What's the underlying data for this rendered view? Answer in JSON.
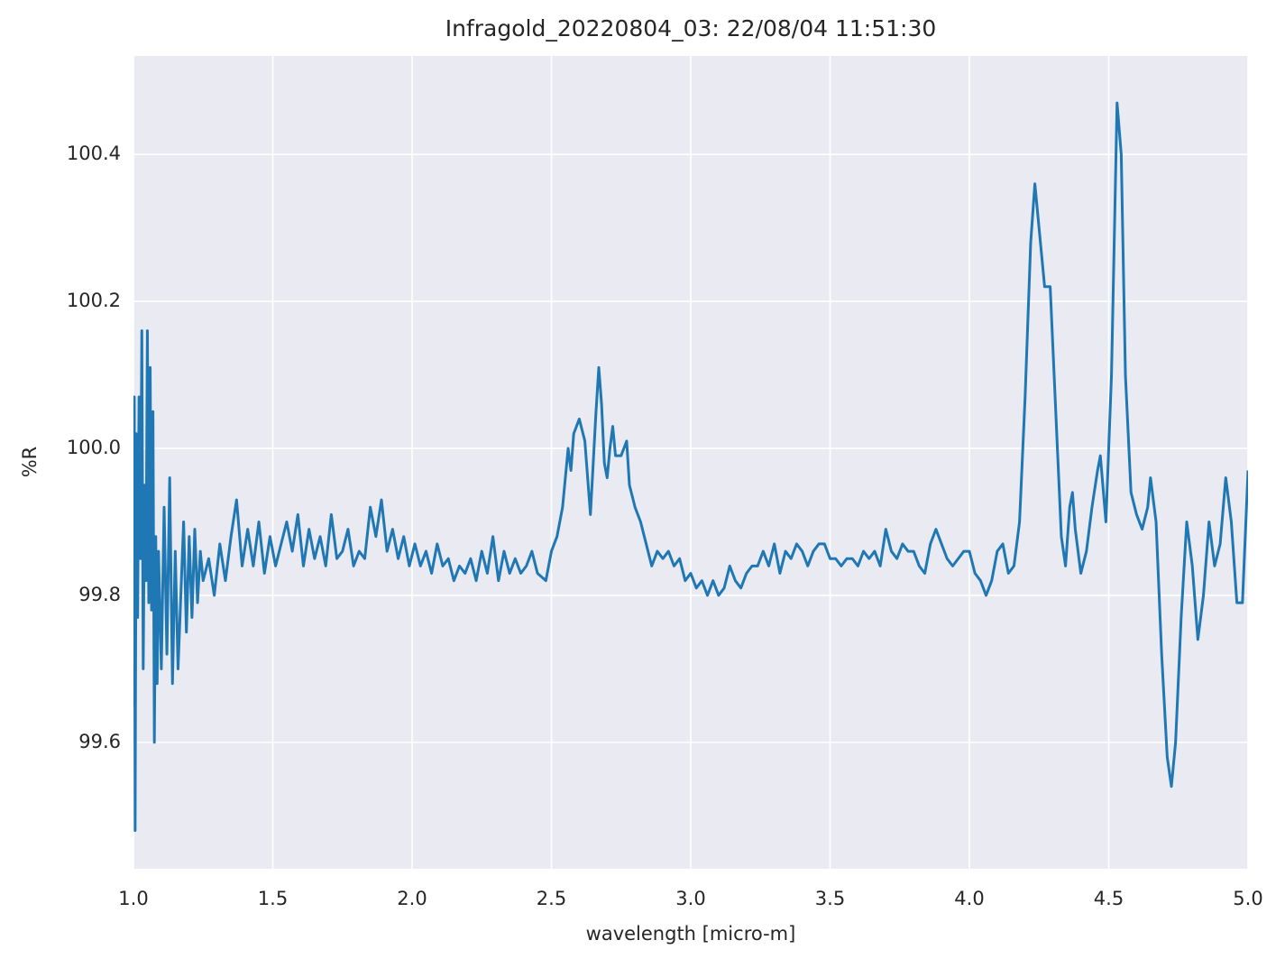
{
  "chart_data": {
    "type": "line",
    "title": "Infragold_20220804_03:  22/08/04 11:51:30",
    "x_label": "wavelength [micro-m]",
    "y_label": "%R",
    "color": "#1f77b4",
    "grid": true,
    "xlim": [
      1.0,
      5.0
    ],
    "ylim": [
      99.428,
      100.534
    ],
    "xticks": [
      {
        "value": 1.0,
        "label": "1.0"
      },
      1.5,
      {
        "value": 2.0,
        "label": "2.0"
      },
      2.5,
      {
        "value": 3.0,
        "label": "3.0"
      },
      3.5,
      {
        "value": 4.0,
        "label": "4.0"
      },
      4.5,
      {
        "value": 5.0,
        "label": "5.0"
      }
    ],
    "yticks": [
      99.6,
      99.8,
      {
        "value": 100.0,
        "label": "100.0"
      },
      100.2,
      100.4
    ],
    "x": [
      1.0,
      1.003,
      1.006,
      1.01,
      1.015,
      1.02,
      1.025,
      1.03,
      1.035,
      1.04,
      1.045,
      1.05,
      1.055,
      1.06,
      1.065,
      1.07,
      1.075,
      1.08,
      1.085,
      1.09,
      1.1,
      1.11,
      1.12,
      1.13,
      1.14,
      1.15,
      1.16,
      1.17,
      1.18,
      1.19,
      1.2,
      1.21,
      1.22,
      1.23,
      1.24,
      1.25,
      1.27,
      1.29,
      1.31,
      1.33,
      1.35,
      1.37,
      1.39,
      1.41,
      1.43,
      1.45,
      1.47,
      1.49,
      1.51,
      1.53,
      1.55,
      1.57,
      1.59,
      1.61,
      1.63,
      1.65,
      1.67,
      1.69,
      1.71,
      1.73,
      1.75,
      1.77,
      1.79,
      1.81,
      1.83,
      1.85,
      1.87,
      1.89,
      1.91,
      1.93,
      1.95,
      1.97,
      1.99,
      2.01,
      2.03,
      2.05,
      2.07,
      2.09,
      2.11,
      2.13,
      2.15,
      2.17,
      2.19,
      2.21,
      2.23,
      2.25,
      2.27,
      2.29,
      2.31,
      2.33,
      2.35,
      2.37,
      2.39,
      2.41,
      2.43,
      2.45,
      2.48,
      2.5,
      2.52,
      2.54,
      2.56,
      2.57,
      2.58,
      2.6,
      2.62,
      2.63,
      2.64,
      2.65,
      2.66,
      2.67,
      2.68,
      2.69,
      2.7,
      2.71,
      2.72,
      2.73,
      2.75,
      2.76,
      2.77,
      2.78,
      2.8,
      2.82,
      2.84,
      2.86,
      2.88,
      2.9,
      2.92,
      2.94,
      2.96,
      2.98,
      3.0,
      3.02,
      3.04,
      3.06,
      3.08,
      3.1,
      3.12,
      3.14,
      3.16,
      3.18,
      3.2,
      3.22,
      3.24,
      3.26,
      3.28,
      3.3,
      3.32,
      3.34,
      3.36,
      3.38,
      3.4,
      3.42,
      3.44,
      3.46,
      3.48,
      3.5,
      3.52,
      3.54,
      3.56,
      3.58,
      3.6,
      3.62,
      3.64,
      3.66,
      3.68,
      3.7,
      3.72,
      3.74,
      3.76,
      3.78,
      3.8,
      3.82,
      3.84,
      3.86,
      3.88,
      3.9,
      3.92,
      3.94,
      3.96,
      3.98,
      4.0,
      4.02,
      4.04,
      4.06,
      4.08,
      4.1,
      4.12,
      4.14,
      4.16,
      4.18,
      4.2,
      4.22,
      4.235,
      4.25,
      4.27,
      4.29,
      4.31,
      4.33,
      4.345,
      4.36,
      4.37,
      4.38,
      4.4,
      4.42,
      4.44,
      4.46,
      4.47,
      4.49,
      4.51,
      4.53,
      4.545,
      4.56,
      4.58,
      4.6,
      4.62,
      4.64,
      4.65,
      4.67,
      4.69,
      4.71,
      4.725,
      4.74,
      4.76,
      4.78,
      4.8,
      4.82,
      4.84,
      4.86,
      4.88,
      4.9,
      4.92,
      4.94,
      4.96,
      4.98,
      5.0
    ],
    "values": [
      99.65,
      100.07,
      99.48,
      100.02,
      99.77,
      100.07,
      99.85,
      100.16,
      99.7,
      99.95,
      99.82,
      100.16,
      99.79,
      100.11,
      99.78,
      100.05,
      99.6,
      99.88,
      99.68,
      99.86,
      99.7,
      99.92,
      99.72,
      99.96,
      99.68,
      99.86,
      99.7,
      99.8,
      99.9,
      99.75,
      99.88,
      99.77,
      99.89,
      99.79,
      99.86,
      99.82,
      99.85,
      99.8,
      99.87,
      99.82,
      99.88,
      99.93,
      99.84,
      99.89,
      99.84,
      99.9,
      99.83,
      99.88,
      99.84,
      99.87,
      99.9,
      99.86,
      99.91,
      99.84,
      99.89,
      99.85,
      99.88,
      99.84,
      99.91,
      99.85,
      99.86,
      99.89,
      99.84,
      99.86,
      99.85,
      99.92,
      99.88,
      99.93,
      99.86,
      99.89,
      99.85,
      99.88,
      99.84,
      99.87,
      99.84,
      99.86,
      99.83,
      99.87,
      99.84,
      99.85,
      99.82,
      99.84,
      99.83,
      99.85,
      99.82,
      99.86,
      99.83,
      99.88,
      99.82,
      99.86,
      99.83,
      99.85,
      99.83,
      99.84,
      99.86,
      99.83,
      99.82,
      99.86,
      99.88,
      99.92,
      100.0,
      99.97,
      100.02,
      100.04,
      100.01,
      99.96,
      99.91,
      99.98,
      100.05,
      100.11,
      100.06,
      99.98,
      99.96,
      100.0,
      100.03,
      99.99,
      99.99,
      100.0,
      100.01,
      99.95,
      99.92,
      99.9,
      99.87,
      99.84,
      99.86,
      99.85,
      99.86,
      99.84,
      99.85,
      99.82,
      99.83,
      99.81,
      99.82,
      99.8,
      99.82,
      99.8,
      99.81,
      99.84,
      99.82,
      99.81,
      99.83,
      99.84,
      99.84,
      99.86,
      99.84,
      99.87,
      99.83,
      99.86,
      99.85,
      99.87,
      99.86,
      99.84,
      99.86,
      99.87,
      99.87,
      99.85,
      99.85,
      99.84,
      99.85,
      99.85,
      99.84,
      99.86,
      99.85,
      99.86,
      99.84,
      99.89,
      99.86,
      99.85,
      99.87,
      99.86,
      99.86,
      99.84,
      99.83,
      99.87,
      99.89,
      99.87,
      99.85,
      99.84,
      99.85,
      99.86,
      99.86,
      99.83,
      99.82,
      99.8,
      99.82,
      99.86,
      99.87,
      99.83,
      99.84,
      99.9,
      100.07,
      100.28,
      100.36,
      100.3,
      100.22,
      100.22,
      100.05,
      99.88,
      99.84,
      99.92,
      99.94,
      99.89,
      99.83,
      99.86,
      99.92,
      99.97,
      99.99,
      99.9,
      100.1,
      100.47,
      100.4,
      100.1,
      99.94,
      99.91,
      99.89,
      99.92,
      99.96,
      99.9,
      99.72,
      99.58,
      99.54,
      99.6,
      99.77,
      99.9,
      99.84,
      99.74,
      99.8,
      99.9,
      99.84,
      99.87,
      99.96,
      99.9,
      99.79,
      99.79,
      99.97
    ]
  }
}
